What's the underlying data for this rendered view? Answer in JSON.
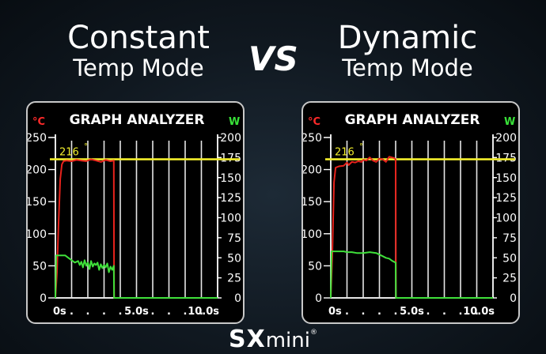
{
  "headings": {
    "left": {
      "line1": "Constant",
      "line2": "Temp Mode"
    },
    "vs": "VS",
    "right": {
      "line1": "Dynamic",
      "line2": "Temp Mode"
    }
  },
  "logo": {
    "sx": "SX",
    "mini": "mini",
    "mark": "®"
  },
  "chart_data": [
    {
      "type": "line",
      "title": "GRAPH ANALYZER",
      "ylabel_left": "°C",
      "ylabel_right": "W",
      "yticks_left": [
        "250",
        "200",
        "150",
        "100",
        "50",
        "0"
      ],
      "yticks_right": [
        "200",
        "175",
        "150",
        "125",
        "100",
        "75",
        "50",
        "25",
        "0"
      ],
      "xticks": [
        "0s",
        ".",
        ".",
        ".",
        ".",
        "5.0s",
        ".",
        ".",
        ".",
        ".",
        "10.0s"
      ],
      "xlim": [
        0,
        10
      ],
      "ylim_left": [
        0,
        250
      ],
      "ylim_right": [
        0,
        200
      ],
      "grid": true,
      "annotation": {
        "label": "216",
        "mark": "°",
        "value": 216
      },
      "colors": {
        "temp": "#e8231c",
        "watt": "#3fe03a",
        "target": "#f2ee2c",
        "grid": "#e6e6e6",
        "temp_label": "#ff2a2a",
        "watt_label": "#38e038",
        "annotation": "#f2ee2c"
      },
      "series": [
        {
          "axis": "left",
          "color": "temp",
          "x": [
            0,
            0.1,
            0.2,
            0.3,
            0.4,
            0.5,
            0.7,
            1.0,
            1.3,
            1.6,
            1.9,
            2.2,
            2.5,
            2.8,
            3.1,
            3.4,
            3.6,
            3.62,
            10
          ],
          "y": [
            0,
            40,
            120,
            185,
            208,
            213,
            214,
            213,
            215,
            214,
            213,
            216,
            214,
            212,
            215,
            213,
            214,
            0,
            0
          ]
        },
        {
          "axis": "right",
          "color": "watt",
          "x": [
            0,
            0.05,
            0.3,
            0.6,
            0.8,
            1.0,
            1.2,
            1.4,
            1.5,
            1.6,
            1.7,
            1.8,
            1.9,
            2.0,
            2.1,
            2.2,
            2.3,
            2.4,
            2.5,
            2.6,
            2.7,
            2.8,
            2.9,
            3.0,
            3.1,
            3.2,
            3.3,
            3.4,
            3.5,
            3.6,
            3.62,
            10
          ],
          "y": [
            0,
            53,
            53,
            53,
            50,
            47,
            44,
            46,
            41,
            45,
            38,
            47,
            40,
            44,
            36,
            46,
            39,
            43,
            41,
            44,
            35,
            42,
            37,
            41,
            38,
            43,
            32,
            39,
            35,
            40,
            0,
            0
          ]
        }
      ]
    },
    {
      "type": "line",
      "title": "GRAPH ANALYZER",
      "ylabel_left": "°C",
      "ylabel_right": "W",
      "yticks_left": [
        "250",
        "200",
        "150",
        "100",
        "50",
        "0"
      ],
      "yticks_right": [
        "200",
        "175",
        "150",
        "125",
        "100",
        "75",
        "50",
        "25",
        "0"
      ],
      "xticks": [
        "0s",
        ".",
        ".",
        ".",
        ".",
        "5.0s",
        ".",
        ".",
        ".",
        ".",
        "10.0s"
      ],
      "xlim": [
        0,
        10
      ],
      "ylim_left": [
        0,
        250
      ],
      "ylim_right": [
        0,
        200
      ],
      "grid": true,
      "annotation": {
        "label": "216",
        "mark": "°",
        "value": 216
      },
      "colors": {
        "temp": "#e8231c",
        "watt": "#3fe03a",
        "target": "#f2ee2c",
        "grid": "#e6e6e6",
        "temp_label": "#ff2a2a",
        "watt_label": "#38e038",
        "annotation": "#f2ee2c"
      },
      "series": [
        {
          "axis": "left",
          "color": "temp",
          "x": [
            0,
            0.1,
            0.2,
            0.3,
            0.5,
            0.8,
            1.0,
            1.1,
            1.3,
            1.5,
            1.7,
            1.9,
            2.0,
            2.2,
            2.4,
            2.6,
            2.8,
            3.0,
            3.2,
            3.4,
            3.6,
            3.9,
            4.0,
            4.02,
            10
          ],
          "y": [
            0,
            70,
            180,
            203,
            205,
            206,
            211,
            207,
            212,
            211,
            213,
            212,
            215,
            214,
            219,
            214,
            212,
            217,
            216,
            212,
            220,
            218,
            216,
            0,
            0
          ]
        },
        {
          "axis": "right",
          "color": "watt",
          "x": [
            0,
            0.05,
            0.4,
            0.8,
            1.0,
            1.3,
            1.6,
            2.0,
            2.4,
            2.8,
            3.0,
            3.2,
            3.4,
            3.6,
            3.8,
            4.0,
            4.02,
            10
          ],
          "y": [
            0,
            58,
            58,
            58,
            57,
            57,
            56,
            56,
            57,
            56,
            54,
            52,
            50,
            49,
            46,
            44,
            0,
            0
          ]
        }
      ]
    }
  ]
}
